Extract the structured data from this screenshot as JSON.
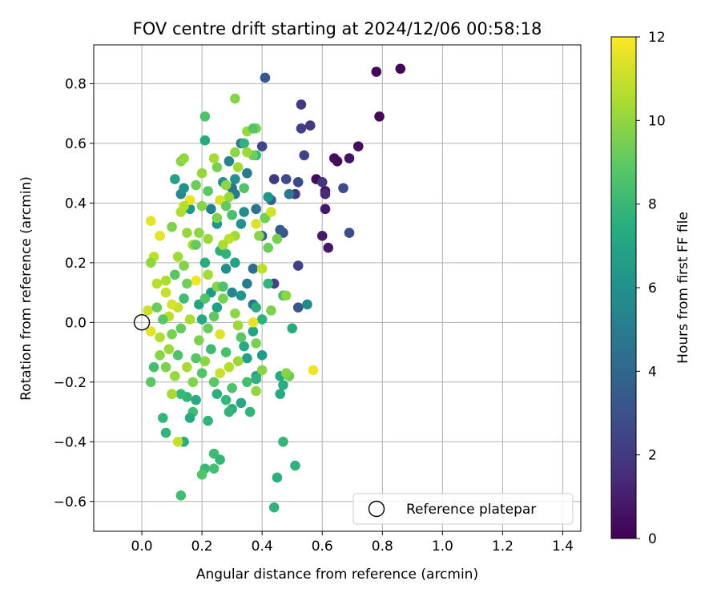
{
  "chart_data": {
    "type": "scatter",
    "title": "FOV centre drift starting at 2024/12/06 00:58:18",
    "xlabel": "Angular distance from reference (arcmin)",
    "ylabel": "Rotation from reference (arcmin)",
    "xlim": [
      -0.16,
      1.46
    ],
    "ylim": [
      -0.7,
      0.93
    ],
    "xticks": [
      "0.0",
      "0.2",
      "0.4",
      "0.6",
      "0.8",
      "1.0",
      "1.2",
      "1.4"
    ],
    "yticks": [
      "−0.6",
      "−0.4",
      "−0.2",
      "0.0",
      "0.2",
      "0.4",
      "0.6",
      "0.8"
    ],
    "grid": true,
    "legend": {
      "position": "lower-right",
      "entries": [
        "Reference platepar"
      ]
    },
    "reference_point": {
      "x": 0.0,
      "y": 0.0,
      "label": "Reference platepar"
    },
    "colorbar": {
      "label": "Hours from first FF file",
      "colormap": "viridis",
      "range": [
        0,
        12
      ],
      "ticks": [
        "0",
        "2",
        "4",
        "6",
        "8",
        "10",
        "12"
      ]
    },
    "points": [
      {
        "x": 0.86,
        "y": 0.85,
        "t": 0.1
      },
      {
        "x": 0.78,
        "y": 0.84,
        "t": 0.1
      },
      {
        "x": 0.79,
        "y": 0.69,
        "t": 0.2
      },
      {
        "x": 0.72,
        "y": 0.59,
        "t": 0.4
      },
      {
        "x": 0.69,
        "y": 0.55,
        "t": 0.6
      },
      {
        "x": 0.64,
        "y": 0.55,
        "t": 0.5
      },
      {
        "x": 0.65,
        "y": 0.54,
        "t": 0.3
      },
      {
        "x": 0.58,
        "y": 0.48,
        "t": 0.3
      },
      {
        "x": 0.61,
        "y": 0.44,
        "t": 0.6
      },
      {
        "x": 0.61,
        "y": 0.38,
        "t": 0.8
      },
      {
        "x": 0.6,
        "y": 0.29,
        "t": 0.9
      },
      {
        "x": 0.62,
        "y": 0.25,
        "t": 0.8
      },
      {
        "x": 0.53,
        "y": 0.73,
        "t": 2.1
      },
      {
        "x": 0.56,
        "y": 0.66,
        "t": 2.0
      },
      {
        "x": 0.53,
        "y": 0.65,
        "t": 2.3
      },
      {
        "x": 0.54,
        "y": 0.56,
        "t": 2.4
      },
      {
        "x": 0.6,
        "y": 0.47,
        "t": 1.8
      },
      {
        "x": 0.61,
        "y": 0.43,
        "t": 1.5
      },
      {
        "x": 0.67,
        "y": 0.45,
        "t": 2.8
      },
      {
        "x": 0.69,
        "y": 0.3,
        "t": 2.9
      },
      {
        "x": 0.52,
        "y": 0.47,
        "t": 2.6
      },
      {
        "x": 0.51,
        "y": 0.43,
        "t": 2.0
      },
      {
        "x": 0.52,
        "y": 0.19,
        "t": 2.4
      },
      {
        "x": 0.52,
        "y": 0.05,
        "t": 3.2
      },
      {
        "x": 0.44,
        "y": 0.48,
        "t": 2.0
      },
      {
        "x": 0.48,
        "y": 0.48,
        "t": 2.7
      },
      {
        "x": 0.44,
        "y": 0.13,
        "t": 2.4
      },
      {
        "x": 0.47,
        "y": 0.3,
        "t": 3.1
      },
      {
        "x": 0.41,
        "y": 0.82,
        "t": 3.3
      },
      {
        "x": 0.4,
        "y": 0.59,
        "t": 2.6
      },
      {
        "x": 0.41,
        "y": 0.35,
        "t": 3.0
      },
      {
        "x": 0.4,
        "y": 0.29,
        "t": 3.8
      },
      {
        "x": 0.46,
        "y": 0.31,
        "t": 3.5
      },
      {
        "x": 0.43,
        "y": 0.41,
        "t": 3.8
      },
      {
        "x": 0.37,
        "y": 0.18,
        "t": 4.2
      },
      {
        "x": 0.37,
        "y": 0.06,
        "t": 4.8
      },
      {
        "x": 0.55,
        "y": 0.06,
        "t": 5.6
      },
      {
        "x": 0.49,
        "y": 0.43,
        "t": 4.9
      },
      {
        "x": 0.38,
        "y": 0.38,
        "t": 4.6
      },
      {
        "x": 0.34,
        "y": 0.37,
        "t": 5.8
      },
      {
        "x": 0.3,
        "y": 0.45,
        "t": 4.5
      },
      {
        "x": 0.27,
        "y": 0.47,
        "t": 5.8
      },
      {
        "x": 0.31,
        "y": 0.48,
        "t": 6.0
      },
      {
        "x": 0.29,
        "y": 0.54,
        "t": 5.4
      },
      {
        "x": 0.33,
        "y": 0.6,
        "t": 4.6
      },
      {
        "x": 0.35,
        "y": 0.5,
        "t": 4.9
      },
      {
        "x": 0.31,
        "y": 0.43,
        "t": 5.0
      },
      {
        "x": 0.23,
        "y": 0.38,
        "t": 5.2
      },
      {
        "x": 0.13,
        "y": 0.43,
        "t": 5.6
      },
      {
        "x": 0.14,
        "y": 0.45,
        "t": 6.1
      },
      {
        "x": 0.11,
        "y": 0.48,
        "t": 6.9
      },
      {
        "x": 0.16,
        "y": 0.38,
        "t": 6.3
      },
      {
        "x": 0.21,
        "y": 0.61,
        "t": 7.3
      },
      {
        "x": 0.34,
        "y": 0.6,
        "t": 7.8
      },
      {
        "x": 0.38,
        "y": 0.56,
        "t": 7.9
      },
      {
        "x": 0.42,
        "y": 0.42,
        "t": 6.4
      },
      {
        "x": 0.25,
        "y": 0.33,
        "t": 6.2
      },
      {
        "x": 0.33,
        "y": 0.33,
        "t": 6.0
      },
      {
        "x": 0.28,
        "y": 0.18,
        "t": 5.8
      },
      {
        "x": 0.3,
        "y": 0.1,
        "t": 5.6
      },
      {
        "x": 0.33,
        "y": 0.09,
        "t": 6.3
      },
      {
        "x": 0.35,
        "y": 0.13,
        "t": 5.0
      },
      {
        "x": 0.31,
        "y": 0.2,
        "t": 6.8
      },
      {
        "x": 0.23,
        "y": 0.1,
        "t": 6.5
      },
      {
        "x": 0.25,
        "y": 0.05,
        "t": 6.7
      },
      {
        "x": 0.19,
        "y": 0.06,
        "t": 7.0
      },
      {
        "x": 0.2,
        "y": 0.01,
        "t": 7.2
      },
      {
        "x": 0.21,
        "y": 0.2,
        "t": 7.4
      },
      {
        "x": 0.26,
        "y": 0.24,
        "t": 7.6
      },
      {
        "x": 0.28,
        "y": 0.23,
        "t": 7.8
      },
      {
        "x": 0.38,
        "y": 0.05,
        "t": 7.3
      },
      {
        "x": 0.4,
        "y": 0.01,
        "t": 7.6
      },
      {
        "x": 0.42,
        "y": 0.13,
        "t": 7.9
      },
      {
        "x": 0.47,
        "y": 0.09,
        "t": 8.4
      },
      {
        "x": 0.5,
        "y": -0.02,
        "t": 7.3
      },
      {
        "x": 0.37,
        "y": -0.03,
        "t": 7.0
      },
      {
        "x": 0.34,
        "y": -0.08,
        "t": 7.2
      },
      {
        "x": 0.35,
        "y": -0.12,
        "t": 6.8
      },
      {
        "x": 0.4,
        "y": -0.11,
        "t": 6.6
      },
      {
        "x": 0.38,
        "y": -0.18,
        "t": 6.9
      },
      {
        "x": 0.46,
        "y": -0.18,
        "t": 7.2
      },
      {
        "x": 0.47,
        "y": -0.21,
        "t": 7.4
      },
      {
        "x": 0.46,
        "y": -0.24,
        "t": 7.2
      },
      {
        "x": 0.38,
        "y": -0.19,
        "t": 7.7
      },
      {
        "x": 0.33,
        "y": -0.27,
        "t": 7.1
      },
      {
        "x": 0.3,
        "y": -0.29,
        "t": 7.5
      },
      {
        "x": 0.29,
        "y": -0.3,
        "t": 7.8
      },
      {
        "x": 0.28,
        "y": -0.26,
        "t": 8.0
      },
      {
        "x": 0.25,
        "y": -0.24,
        "t": 7.6
      },
      {
        "x": 0.22,
        "y": -0.33,
        "t": 7.8
      },
      {
        "x": 0.18,
        "y": -0.26,
        "t": 7.3
      },
      {
        "x": 0.15,
        "y": -0.25,
        "t": 7.9
      },
      {
        "x": 0.13,
        "y": -0.24,
        "t": 8.1
      },
      {
        "x": 0.17,
        "y": -0.3,
        "t": 8.3
      },
      {
        "x": 0.16,
        "y": -0.32,
        "t": 7.2
      },
      {
        "x": 0.14,
        "y": -0.4,
        "t": 7.4
      },
      {
        "x": 0.08,
        "y": -0.37,
        "t": 7.8
      },
      {
        "x": 0.07,
        "y": -0.32,
        "t": 8.0
      },
      {
        "x": 0.1,
        "y": -0.24,
        "t": 8.6
      },
      {
        "x": 0.24,
        "y": -0.44,
        "t": 8.2
      },
      {
        "x": 0.26,
        "y": -0.46,
        "t": 7.9
      },
      {
        "x": 0.21,
        "y": -0.49,
        "t": 8.1
      },
      {
        "x": 0.24,
        "y": -0.49,
        "t": 8.4
      },
      {
        "x": 0.2,
        "y": -0.51,
        "t": 8.7
      },
      {
        "x": 0.13,
        "y": -0.58,
        "t": 8.3
      },
      {
        "x": 0.45,
        "y": -0.52,
        "t": 7.6
      },
      {
        "x": 0.44,
        "y": -0.62,
        "t": 7.8
      },
      {
        "x": 0.47,
        "y": -0.4,
        "t": 7.9
      },
      {
        "x": 0.51,
        "y": -0.48,
        "t": 7.7
      },
      {
        "x": 0.49,
        "y": -0.18,
        "t": 9.2
      },
      {
        "x": 0.45,
        "y": 0.28,
        "t": 9.5
      },
      {
        "x": 0.42,
        "y": 0.25,
        "t": 9.2
      },
      {
        "x": 0.41,
        "y": 0.35,
        "t": 9.4
      },
      {
        "x": 0.39,
        "y": 0.29,
        "t": 9.8
      },
      {
        "x": 0.37,
        "y": 0.56,
        "t": 9.3
      },
      {
        "x": 0.38,
        "y": 0.65,
        "t": 9.6
      },
      {
        "x": 0.35,
        "y": 0.64,
        "t": 10.1
      },
      {
        "x": 0.31,
        "y": 0.75,
        "t": 9.8
      },
      {
        "x": 0.31,
        "y": 0.57,
        "t": 9.9
      },
      {
        "x": 0.35,
        "y": 0.57,
        "t": 10.2
      },
      {
        "x": 0.32,
        "y": 0.52,
        "t": 10.3
      },
      {
        "x": 0.28,
        "y": 0.46,
        "t": 9.9
      },
      {
        "x": 0.29,
        "y": 0.42,
        "t": 10.1
      },
      {
        "x": 0.25,
        "y": 0.52,
        "t": 9.5
      },
      {
        "x": 0.24,
        "y": 0.55,
        "t": 10.4
      },
      {
        "x": 0.2,
        "y": 0.5,
        "t": 10.1
      },
      {
        "x": 0.13,
        "y": 0.54,
        "t": 9.8
      },
      {
        "x": 0.14,
        "y": 0.55,
        "t": 10.0
      },
      {
        "x": 0.21,
        "y": 0.69,
        "t": 8.6
      },
      {
        "x": 0.16,
        "y": 0.41,
        "t": 11.6
      },
      {
        "x": 0.26,
        "y": 0.41,
        "t": 11.2
      },
      {
        "x": 0.3,
        "y": 0.36,
        "t": 11.5
      },
      {
        "x": 0.38,
        "y": 0.33,
        "t": 11.3
      },
      {
        "x": 0.43,
        "y": 0.37,
        "t": 11.2
      },
      {
        "x": 0.31,
        "y": 0.29,
        "t": 10.3
      },
      {
        "x": 0.29,
        "y": 0.28,
        "t": 10.8
      },
      {
        "x": 0.27,
        "y": 0.26,
        "t": 10.5
      },
      {
        "x": 0.22,
        "y": 0.28,
        "t": 10.2
      },
      {
        "x": 0.19,
        "y": 0.3,
        "t": 9.9
      },
      {
        "x": 0.17,
        "y": 0.26,
        "t": 10.4
      },
      {
        "x": 0.15,
        "y": 0.3,
        "t": 10.1
      },
      {
        "x": 0.1,
        "y": 0.32,
        "t": 9.6
      },
      {
        "x": 0.06,
        "y": 0.29,
        "t": 10.2
      },
      {
        "x": 0.03,
        "y": 0.34,
        "t": 11.5
      },
      {
        "x": 0.06,
        "y": 0.29,
        "t": 11.6
      },
      {
        "x": 0.04,
        "y": 0.22,
        "t": 10.8
      },
      {
        "x": 0.03,
        "y": 0.2,
        "t": 10.0
      },
      {
        "x": 0.08,
        "y": 0.14,
        "t": 10.5
      },
      {
        "x": 0.05,
        "y": 0.13,
        "t": 10.7
      },
      {
        "x": 0.08,
        "y": 0.1,
        "t": 11.0
      },
      {
        "x": 0.12,
        "y": 0.22,
        "t": 10.3
      },
      {
        "x": 0.14,
        "y": 0.19,
        "t": 9.7
      },
      {
        "x": 0.18,
        "y": 0.14,
        "t": 11.7
      },
      {
        "x": 0.22,
        "y": 0.16,
        "t": 10.4
      },
      {
        "x": 0.25,
        "y": 0.12,
        "t": 9.8
      },
      {
        "x": 0.27,
        "y": 0.08,
        "t": 9.5
      },
      {
        "x": 0.31,
        "y": 0.03,
        "t": 9.9
      },
      {
        "x": 0.32,
        "y": -0.01,
        "t": 10.2
      },
      {
        "x": 0.37,
        "y": 0.0,
        "t": 11.6
      },
      {
        "x": 0.26,
        "y": -0.04,
        "t": 11.4
      },
      {
        "x": 0.22,
        "y": -0.02,
        "t": 9.3
      },
      {
        "x": 0.19,
        "y": -0.06,
        "t": 9.6
      },
      {
        "x": 0.16,
        "y": 0.01,
        "t": 10.5
      },
      {
        "x": 0.12,
        "y": 0.05,
        "t": 11.0
      },
      {
        "x": 0.1,
        "y": 0.06,
        "t": 11.3
      },
      {
        "x": 0.09,
        "y": 0.02,
        "t": 10.8
      },
      {
        "x": 0.06,
        "y": -0.05,
        "t": 10.6
      },
      {
        "x": 0.03,
        "y": -0.03,
        "t": 11.5
      },
      {
        "x": 0.02,
        "y": 0.04,
        "t": 11.1
      },
      {
        "x": 0.09,
        "y": -0.09,
        "t": 10.2
      },
      {
        "x": 0.06,
        "y": -0.11,
        "t": 9.8
      },
      {
        "x": 0.08,
        "y": -0.15,
        "t": 9.6
      },
      {
        "x": 0.11,
        "y": -0.18,
        "t": 10.1
      },
      {
        "x": 0.15,
        "y": -0.15,
        "t": 10.4
      },
      {
        "x": 0.17,
        "y": -0.2,
        "t": 9.7
      },
      {
        "x": 0.21,
        "y": -0.13,
        "t": 9.9
      },
      {
        "x": 0.26,
        "y": -0.17,
        "t": 11.0
      },
      {
        "x": 0.29,
        "y": -0.15,
        "t": 10.6
      },
      {
        "x": 0.32,
        "y": -0.13,
        "t": 10.2
      },
      {
        "x": 0.38,
        "y": -0.07,
        "t": 9.5
      },
      {
        "x": 0.4,
        "y": -0.16,
        "t": 9.8
      },
      {
        "x": 0.38,
        "y": -0.23,
        "t": 10.0
      },
      {
        "x": 0.48,
        "y": -0.17,
        "t": 9.8
      },
      {
        "x": 0.57,
        "y": -0.16,
        "t": 11.7
      },
      {
        "x": 0.1,
        "y": -0.24,
        "t": 10.4
      },
      {
        "x": 0.12,
        "y": -0.4,
        "t": 10.9
      },
      {
        "x": 0.43,
        "y": 0.04,
        "t": 9.6
      },
      {
        "x": 0.48,
        "y": 0.09,
        "t": 9.9
      },
      {
        "x": 0.4,
        "y": 0.18,
        "t": 10.8
      },
      {
        "x": 0.03,
        "y": -0.2,
        "t": 8.9
      },
      {
        "x": 0.04,
        "y": -0.15,
        "t": 8.4
      },
      {
        "x": 0.12,
        "y": -0.11,
        "t": 8.6
      },
      {
        "x": 0.18,
        "y": -0.12,
        "t": 8.8
      },
      {
        "x": 0.23,
        "y": -0.09,
        "t": 8.2
      },
      {
        "x": 0.28,
        "y": -0.1,
        "t": 8.5
      },
      {
        "x": 0.33,
        "y": -0.05,
        "t": 8.9
      },
      {
        "x": 0.14,
        "y": 0.08,
        "t": 8.3
      },
      {
        "x": 0.21,
        "y": 0.08,
        "t": 8.7
      },
      {
        "x": 0.24,
        "y": 0.02,
        "t": 9.0
      },
      {
        "x": 0.27,
        "y": 0.12,
        "t": 8.6
      },
      {
        "x": 0.18,
        "y": 0.26,
        "t": 9.1
      },
      {
        "x": 0.11,
        "y": 0.16,
        "t": 8.8
      },
      {
        "x": 0.15,
        "y": 0.13,
        "t": 9.4
      },
      {
        "x": 0.05,
        "y": 0.05,
        "t": 9.2
      },
      {
        "x": 0.07,
        "y": 0.01,
        "t": 8.9
      },
      {
        "x": 0.1,
        "y": -0.04,
        "t": 9.5
      },
      {
        "x": 0.13,
        "y": -0.02,
        "t": 9.1
      },
      {
        "x": 0.2,
        "y": -0.17,
        "t": 8.7
      },
      {
        "x": 0.24,
        "y": -0.2,
        "t": 8.9
      },
      {
        "x": 0.3,
        "y": -0.22,
        "t": 8.6
      },
      {
        "x": 0.35,
        "y": -0.2,
        "t": 8.4
      },
      {
        "x": 0.36,
        "y": -0.3,
        "t": 7.9
      },
      {
        "x": 0.22,
        "y": 0.44,
        "t": 8.9
      },
      {
        "x": 0.18,
        "y": 0.46,
        "t": 9.3
      },
      {
        "x": 0.28,
        "y": 0.39,
        "t": 9.1
      },
      {
        "x": 0.34,
        "y": 0.45,
        "t": 8.7
      },
      {
        "x": 0.37,
        "y": 0.65,
        "t": 8.8
      },
      {
        "x": 0.3,
        "y": 0.36,
        "t": 8.5
      },
      {
        "x": 0.25,
        "y": 0.35,
        "t": 9.6
      },
      {
        "x": 0.2,
        "y": 0.39,
        "t": 9.8
      },
      {
        "x": 0.13,
        "y": 0.37,
        "t": 10.5
      },
      {
        "x": 0.14,
        "y": 0.39,
        "t": 10.7
      }
    ]
  }
}
